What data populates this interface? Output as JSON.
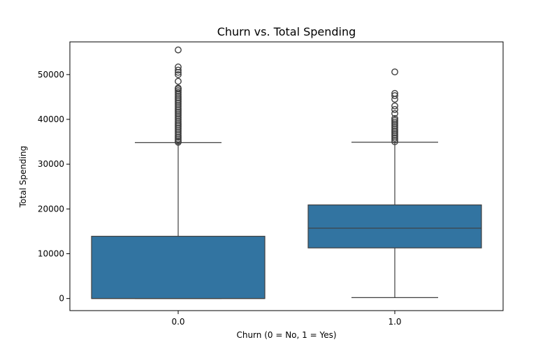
{
  "chart_data": {
    "type": "box",
    "title": "Churn vs. Total Spending",
    "xlabel": "Churn (0 = No, 1 = Yes)",
    "ylabel": "Total Spending",
    "categories": [
      "0.0",
      "1.0"
    ],
    "ylim": [
      -2700,
      57300
    ],
    "yticks": [
      0,
      10000,
      20000,
      30000,
      40000,
      50000
    ],
    "ytick_labels": [
      "0",
      "10000",
      "20000",
      "30000",
      "40000",
      "50000"
    ],
    "grid": false,
    "box_color": "#3274a1",
    "line_color": "#3f3f3f",
    "boxes": [
      {
        "category": "0.0",
        "whisker_low": 0,
        "q1": 0,
        "median": 0,
        "q3": 13900,
        "whisker_high": 34800,
        "outliers": [
          34900,
          35200,
          35600,
          36000,
          36400,
          36800,
          37200,
          37600,
          38000,
          38400,
          38800,
          39200,
          39600,
          40000,
          40400,
          40800,
          41200,
          41600,
          42000,
          42400,
          42800,
          43200,
          43600,
          44000,
          44400,
          44800,
          45200,
          45600,
          46000,
          46400,
          46800,
          47000,
          48500,
          50000,
          50500,
          51000,
          51700,
          55500
        ]
      },
      {
        "category": "1.0",
        "whisker_low": 200,
        "q1": 11300,
        "median": 15700,
        "q3": 20900,
        "whisker_high": 34900,
        "outliers": [
          35000,
          35400,
          35800,
          36200,
          36600,
          37000,
          37400,
          37800,
          38200,
          38600,
          39000,
          39400,
          39800,
          40200,
          41300,
          42200,
          43000,
          44500,
          45300,
          45800,
          50600
        ]
      }
    ]
  }
}
